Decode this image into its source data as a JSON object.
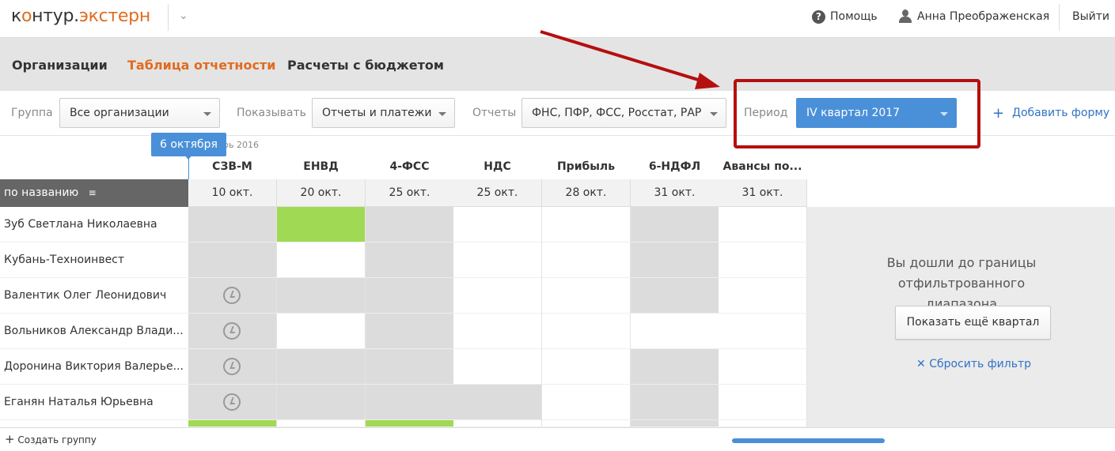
{
  "header": {
    "logo": {
      "prefix": "к",
      "o": "о",
      "mid": "нтур.",
      "product": "экстерн"
    },
    "help": "Помощь",
    "user": "Анна Преображенская",
    "logout": "Выйти"
  },
  "nav": {
    "items": [
      {
        "label": "Организации",
        "active": false
      },
      {
        "label": "Таблица отчетности",
        "active": true
      },
      {
        "label": "Расчеты с бюджетом",
        "active": false
      }
    ]
  },
  "toolbar": {
    "group_label": "Группа",
    "group_value": "Все организации",
    "show_label": "Показывать",
    "show_value": "Отчеты и платежи",
    "reports_label": "Отчеты",
    "reports_value": "ФНС, ПФР, ФСС, Росстат, РАР",
    "period_label": "Период",
    "period_value": "IV квартал 2017",
    "add_form": "Добавить форму"
  },
  "table": {
    "month_label": "рь 2016",
    "today_marker": "6 октября",
    "sort_label": "по названию",
    "columns": [
      {
        "name": "СЗВ-М",
        "date": "10 окт."
      },
      {
        "name": "ЕНВД",
        "date": "20 окт."
      },
      {
        "name": "4-ФСС",
        "date": "25 окт."
      },
      {
        "name": "НДС",
        "date": "25 окт."
      },
      {
        "name": "Прибыль",
        "date": "28 окт."
      },
      {
        "name": "6-НДФЛ",
        "date": "31 окт."
      },
      {
        "name": "Авансы по...",
        "date": "31 окт."
      }
    ],
    "rows": [
      {
        "name": "Зуб Светлана Николаевна",
        "cells": [
          "g",
          "G",
          "g",
          "w",
          "w",
          "g",
          "w"
        ],
        "clock": false
      },
      {
        "name": "Кубань-Техноинвест",
        "cells": [
          "g",
          "w",
          "g",
          "w",
          "w",
          "g",
          "w"
        ],
        "clock": false
      },
      {
        "name": "Валентик Олег Леонидович",
        "cells": [
          "g",
          "g",
          "g",
          "w",
          "w",
          "g",
          "w"
        ],
        "clock": true
      },
      {
        "name": "Вольников Александр Влади...",
        "cells": [
          "g",
          "w",
          "g",
          "w",
          "w",
          "w",
          "w"
        ],
        "clock": true
      },
      {
        "name": "Доронина Виктория Валерье...",
        "cells": [
          "g",
          "g",
          "g",
          "w",
          "w",
          "g",
          "w"
        ],
        "clock": true
      },
      {
        "name": "Еганян Наталья Юрьевна",
        "cells": [
          "g",
          "g",
          "g",
          "g",
          "w",
          "g",
          "w"
        ],
        "clock": true
      },
      {
        "name": "",
        "cells": [
          "G",
          "w",
          "G",
          "w",
          "w",
          "g",
          "w"
        ],
        "clock": false
      }
    ],
    "cell_colors": {
      "g": "#dcdcdc",
      "G": "#a0da55",
      "w": "#ffffff"
    }
  },
  "panel": {
    "message": "Вы дошли до границы отфильтрованного диапазона",
    "show_more": "Показать ещё квартал",
    "reset": "Сбросить фильтр"
  },
  "footer": {
    "create_group": "Создать группу"
  },
  "annotation_color": "#b50f0f"
}
